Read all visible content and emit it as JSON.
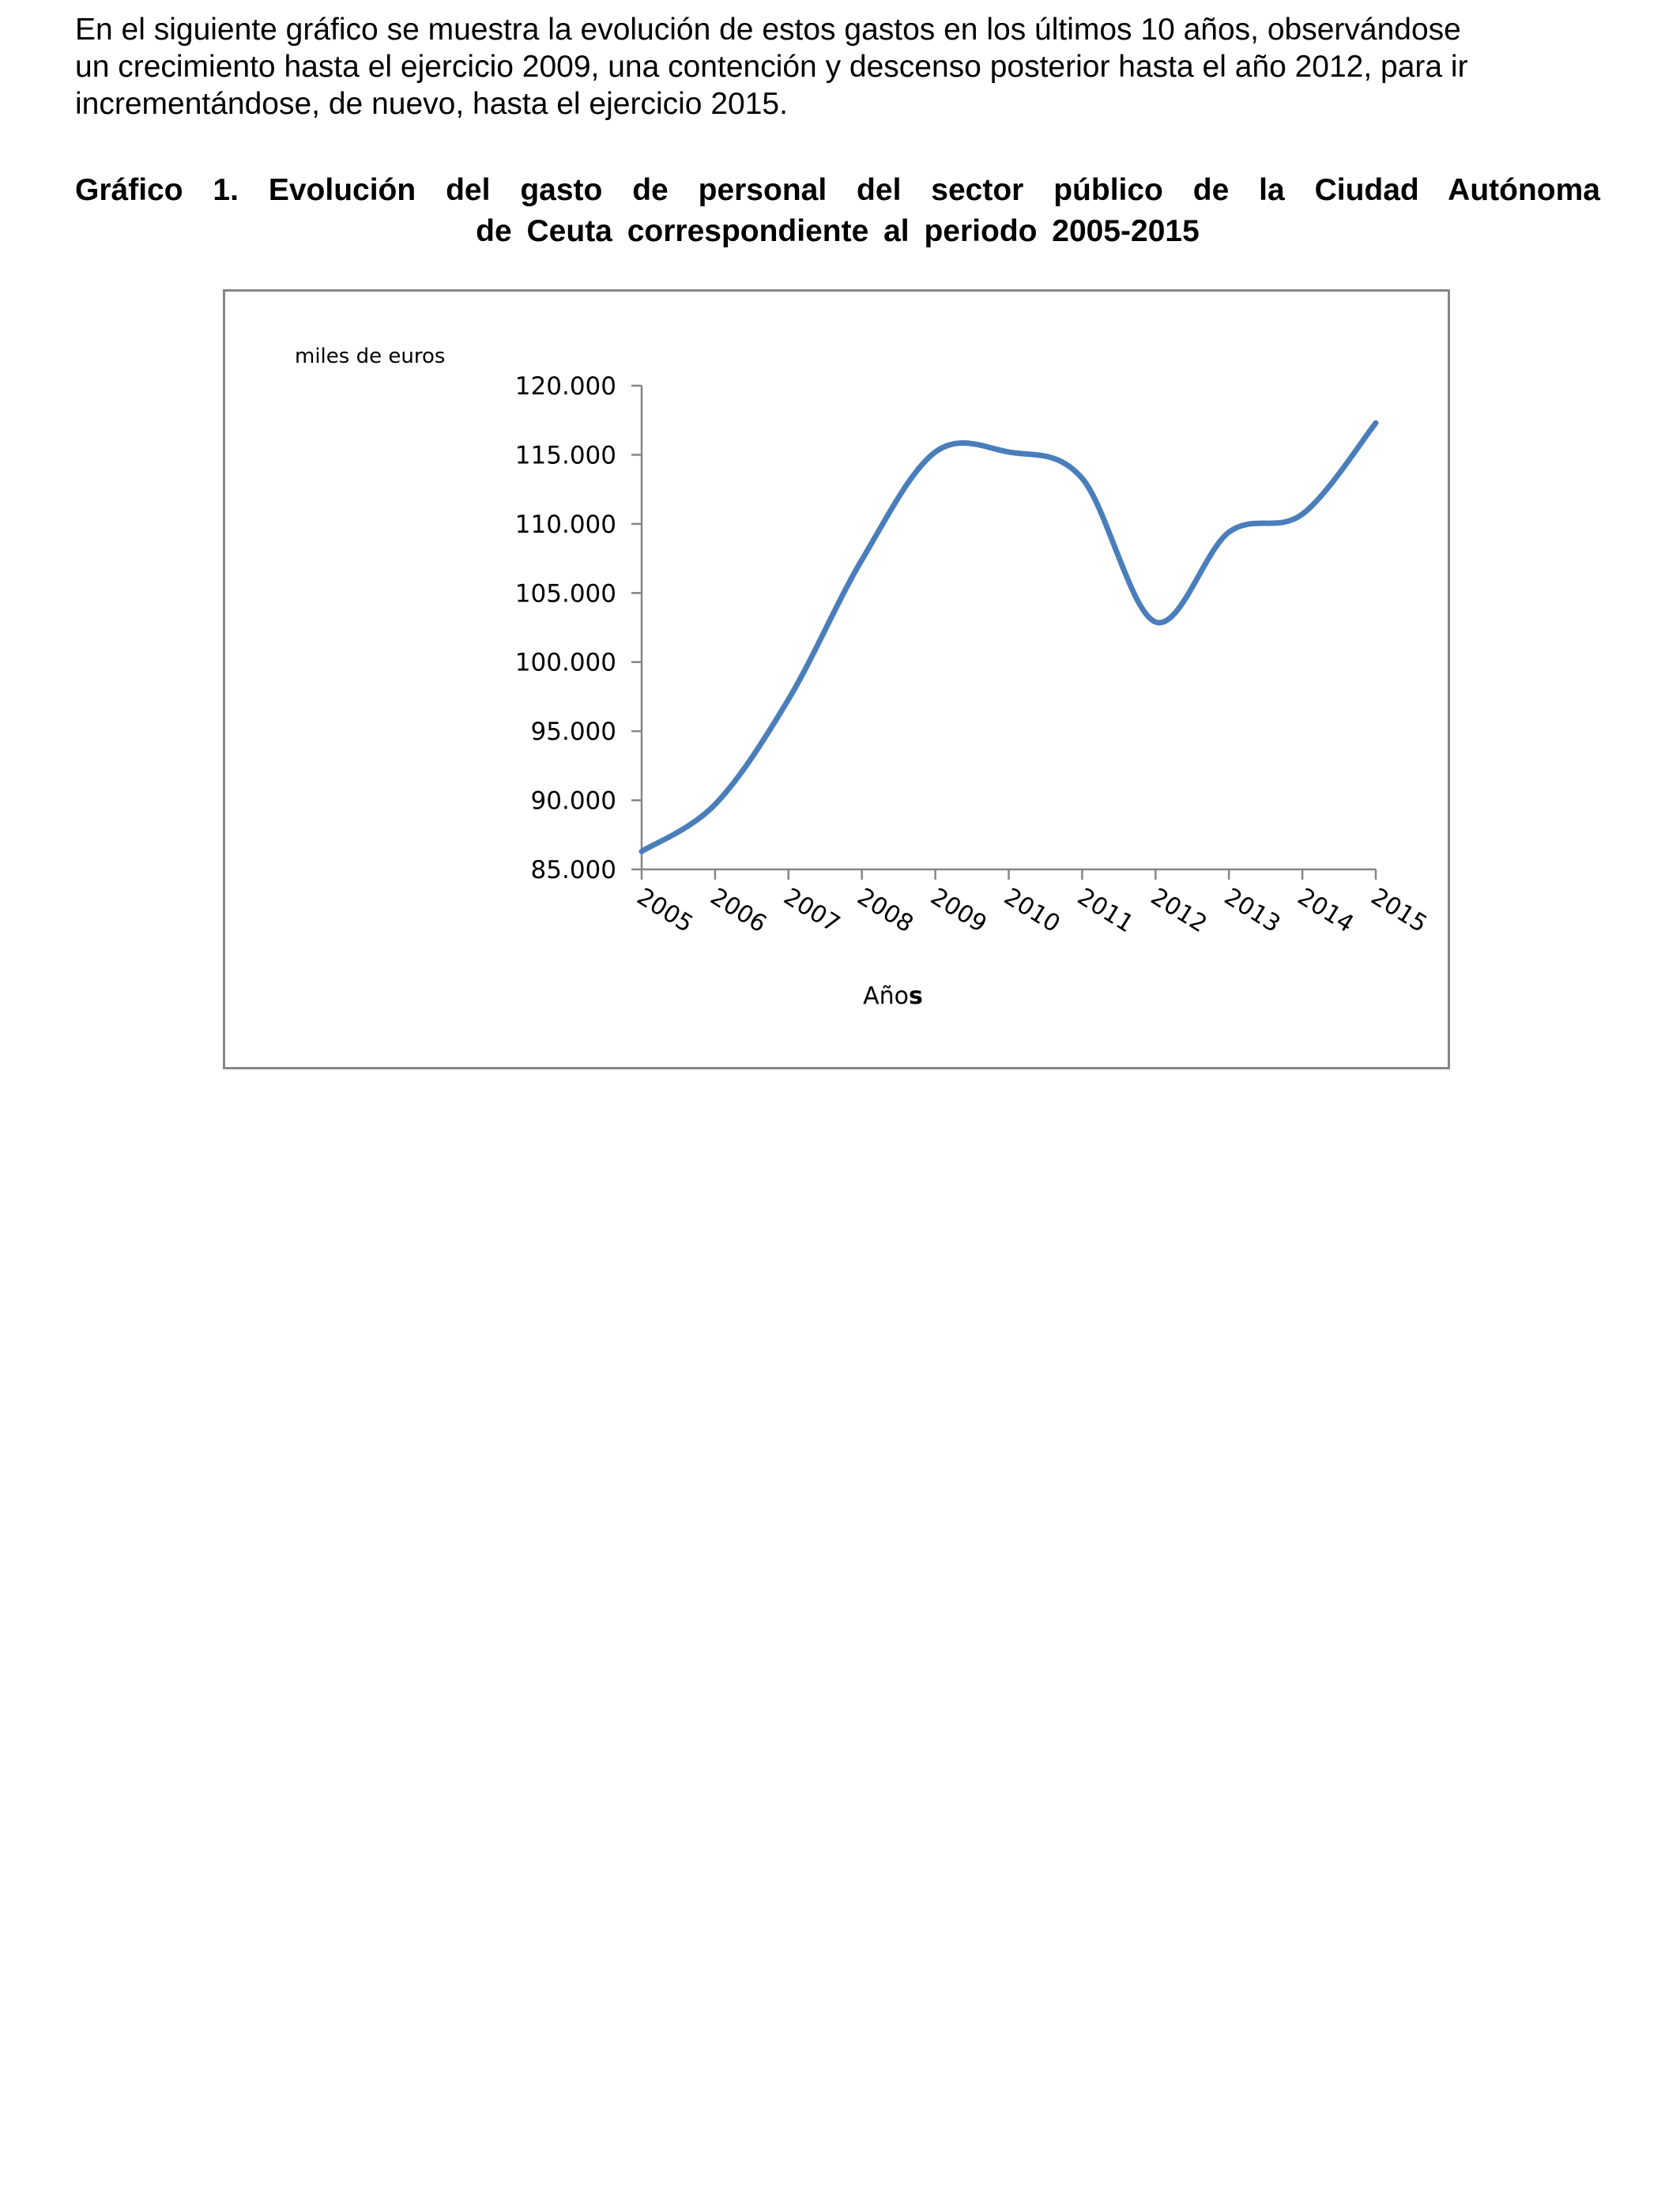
{
  "intro": {
    "line1": "En el siguiente gráfico se muestra la evolución de estos gastos en los últimos 10 años, observándose",
    "line2": "un crecimiento hasta el ejercicio 2009, una contención y descenso posterior hasta el año 2012, para ir",
    "line3": "incrementándose, de nuevo, hasta el ejercicio 2015."
  },
  "caption": {
    "lead": "Gráfico 1.",
    "line1_rest": "Evolución del gasto de personal del sector público de la Ciudad Autónoma",
    "line2": "de Ceuta correspondiente al periodo 2005-2015"
  },
  "chart_data": {
    "type": "line",
    "x": [
      "2005",
      "2006",
      "2007",
      "2008",
      "2009",
      "2010",
      "2011",
      "2012",
      "2013",
      "2014",
      "2015"
    ],
    "series": [
      {
        "values": [
          86300,
          89700,
          97300,
          107400,
          115200,
          115200,
          113300,
          102900,
          109400,
          110700,
          117300
        ],
        "color": "#4A7EBB"
      }
    ],
    "ylabel": "miles de euros",
    "xlabel_main": "Año",
    "xlabel_suffix": "s",
    "ylim": [
      85000,
      120000
    ],
    "yticks": [
      "85.000",
      "90.000",
      "95.000",
      "100.000",
      "105.000",
      "110.000",
      "115.000",
      "120.000"
    ],
    "ytick_values": [
      85000,
      90000,
      95000,
      100000,
      105000,
      110000,
      115000,
      120000
    ],
    "smooth": true,
    "grid": false,
    "legend": false,
    "axis_color": "#868686"
  }
}
